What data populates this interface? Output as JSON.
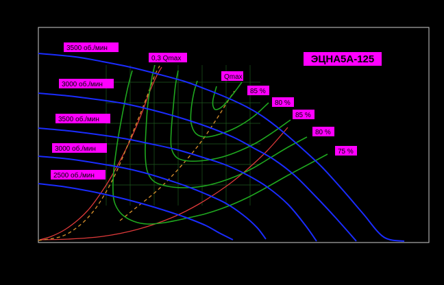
{
  "chart_data": {
    "type": "line",
    "title": "ЭЦНА5А-125",
    "xlabel": "",
    "ylabel": "",
    "grid": true,
    "colors": {
      "background": "#000000",
      "frame": "#cfcfcf",
      "speed_curve": "#1a2cff",
      "efficiency_curve": "#1fa81f",
      "boundary_curve": "#e03a3a",
      "optimum_line": "#d08a2a",
      "label_bg": "#ff00ff",
      "label_text": "#000000"
    },
    "speed_curves": [
      {
        "label": "3500 об./мин",
        "points": [
          [
            56,
            78
          ],
          [
            110,
            83
          ],
          [
            150,
            90
          ],
          [
            190,
            98
          ],
          [
            230,
            108
          ],
          [
            270,
            119
          ],
          [
            300,
            130
          ],
          [
            330,
            142
          ],
          [
            360,
            156
          ],
          [
            385,
            171
          ],
          [
            410,
            190
          ],
          [
            440,
            216
          ],
          [
            470,
            244
          ],
          [
            500,
            277
          ],
          [
            530,
            312
          ],
          [
            560,
            346
          ],
          [
            590,
            352
          ]
        ]
      },
      {
        "label": "3000 об./мин",
        "points": [
          [
            56,
            136
          ],
          [
            100,
            140
          ],
          [
            140,
            145
          ],
          [
            180,
            151
          ],
          [
            220,
            160
          ],
          [
            260,
            171
          ],
          [
            300,
            184
          ],
          [
            340,
            200
          ],
          [
            370,
            216
          ],
          [
            400,
            233
          ],
          [
            430,
            256
          ],
          [
            460,
            286
          ],
          [
            490,
            318
          ],
          [
            520,
            352
          ]
        ]
      },
      {
        "label": "3500 об./мин",
        "points": [
          [
            56,
            187
          ],
          [
            100,
            191
          ],
          [
            140,
            196
          ],
          [
            180,
            202
          ],
          [
            220,
            210
          ],
          [
            260,
            219
          ],
          [
            300,
            231
          ],
          [
            330,
            241
          ],
          [
            360,
            255
          ],
          [
            390,
            273
          ],
          [
            420,
            298
          ],
          [
            445,
            328
          ],
          [
            462,
            352
          ]
        ]
      },
      {
        "label": "3000 об./мин",
        "points": [
          [
            56,
            228
          ],
          [
            100,
            232
          ],
          [
            140,
            238
          ],
          [
            180,
            245
          ],
          [
            210,
            252
          ],
          [
            240,
            261
          ],
          [
            270,
            271
          ],
          [
            300,
            283
          ],
          [
            330,
            297
          ],
          [
            355,
            314
          ],
          [
            375,
            332
          ],
          [
            388,
            349
          ]
        ]
      },
      {
        "label": "2500 об./мин",
        "points": [
          [
            56,
            268
          ],
          [
            90,
            272
          ],
          [
            120,
            277
          ],
          [
            150,
            283
          ],
          [
            180,
            290
          ],
          [
            210,
            298
          ],
          [
            240,
            307
          ],
          [
            270,
            317
          ],
          [
            300,
            329
          ],
          [
            320,
            340
          ],
          [
            340,
            350
          ]
        ]
      }
    ],
    "efficiency_curves": [
      {
        "label": "85 %",
        "points": [
          [
            353,
            120
          ],
          [
            338,
            140
          ],
          [
            325,
            155
          ],
          [
            315,
            160
          ],
          [
            311,
            155
          ],
          [
            311,
            145
          ],
          [
            316,
            126
          ]
        ]
      },
      {
        "label": "80 %",
        "points": [
          [
            392,
            150
          ],
          [
            370,
            170
          ],
          [
            345,
            186
          ],
          [
            320,
            196
          ],
          [
            300,
            200
          ],
          [
            286,
            195
          ],
          [
            279,
            180
          ],
          [
            279,
            160
          ],
          [
            283,
            135
          ],
          [
            288,
            118
          ]
        ]
      },
      {
        "label": "85 %",
        "points": [
          [
            424,
            175
          ],
          [
            400,
            192
          ],
          [
            375,
            208
          ],
          [
            350,
            220
          ],
          [
            325,
            229
          ],
          [
            300,
            234
          ],
          [
            275,
            235
          ],
          [
            258,
            230
          ],
          [
            250,
            215
          ],
          [
            250,
            190
          ],
          [
            253,
            155
          ],
          [
            256,
            125
          ],
          [
            260,
            103
          ]
        ]
      },
      {
        "label": "80 %",
        "points": [
          [
            448,
            200
          ],
          [
            420,
            215
          ],
          [
            395,
            230
          ],
          [
            370,
            245
          ],
          [
            345,
            257
          ],
          [
            320,
            266
          ],
          [
            295,
            272
          ],
          [
            270,
            274
          ],
          [
            245,
            272
          ],
          [
            225,
            265
          ],
          [
            215,
            250
          ],
          [
            212,
            225
          ],
          [
            213,
            190
          ],
          [
            216,
            150
          ],
          [
            222,
            112
          ],
          [
            226,
            95
          ]
        ]
      },
      {
        "label": "75 %",
        "points": [
          [
            478,
            225
          ],
          [
            450,
            240
          ],
          [
            420,
            256
          ],
          [
            390,
            273
          ],
          [
            360,
            289
          ],
          [
            330,
            302
          ],
          [
            300,
            312
          ],
          [
            270,
            319
          ],
          [
            240,
            325
          ],
          [
            215,
            327
          ],
          [
            195,
            323
          ],
          [
            178,
            313
          ],
          [
            168,
            298
          ],
          [
            165,
            280
          ],
          [
            166,
            250
          ],
          [
            171,
            210
          ],
          [
            178,
            170
          ],
          [
            186,
            130
          ],
          [
            193,
            103
          ]
        ]
      }
    ],
    "boundary_curves": [
      {
        "name": "0,3 Qmax",
        "points": [
          [
            58,
            350
          ],
          [
            75,
            345
          ],
          [
            95,
            335
          ],
          [
            115,
            320
          ],
          [
            130,
            305
          ],
          [
            145,
            285
          ],
          [
            160,
            262
          ],
          [
            175,
            235
          ],
          [
            190,
            205
          ],
          [
            205,
            170
          ],
          [
            218,
            135
          ],
          [
            228,
            112
          ],
          [
            236,
            98
          ]
        ]
      },
      {
        "name": "Qmax",
        "points": [
          [
            58,
            350
          ],
          [
            100,
            349
          ],
          [
            150,
            345
          ],
          [
            200,
            335
          ],
          [
            250,
            318
          ],
          [
            290,
            298
          ],
          [
            330,
            272
          ],
          [
            360,
            248
          ],
          [
            390,
            220
          ],
          [
            420,
            186
          ]
        ]
      }
    ],
    "optimum_lines": [
      {
        "name": "0,3 Qmax",
        "points": [
          [
            56,
            351
          ],
          [
            90,
            345
          ],
          [
            115,
            330
          ],
          [
            135,
            310
          ],
          [
            152,
            285
          ],
          [
            168,
            255
          ],
          [
            183,
            220
          ],
          [
            198,
            183
          ],
          [
            213,
            145
          ],
          [
            225,
            112
          ],
          [
            233,
            96
          ]
        ]
      },
      {
        "name": "Qmax",
        "points": [
          [
            175,
            322
          ],
          [
            200,
            302
          ],
          [
            225,
            282
          ],
          [
            250,
            258
          ],
          [
            275,
            230
          ],
          [
            295,
            205
          ],
          [
            310,
            183
          ],
          [
            323,
            163
          ],
          [
            333,
            147
          ],
          [
            342,
            133
          ]
        ]
      }
    ],
    "labels": [
      {
        "text": "3500 об./мин",
        "role": "speed"
      },
      {
        "text": "3000 об./мин",
        "role": "speed"
      },
      {
        "text": "3500 об./мин",
        "role": "speed"
      },
      {
        "text": "3000 об./мин",
        "role": "speed"
      },
      {
        "text": "2500 об./мин",
        "role": "speed"
      },
      {
        "text": "0,3 Qmax",
        "role": "boundary"
      },
      {
        "text": "Qmax",
        "role": "boundary"
      },
      {
        "text": "85 %",
        "role": "efficiency"
      },
      {
        "text": "80 %",
        "role": "efficiency"
      },
      {
        "text": "85 %",
        "role": "efficiency"
      },
      {
        "text": "80 %",
        "role": "efficiency"
      },
      {
        "text": "75 %",
        "role": "efficiency"
      }
    ]
  }
}
